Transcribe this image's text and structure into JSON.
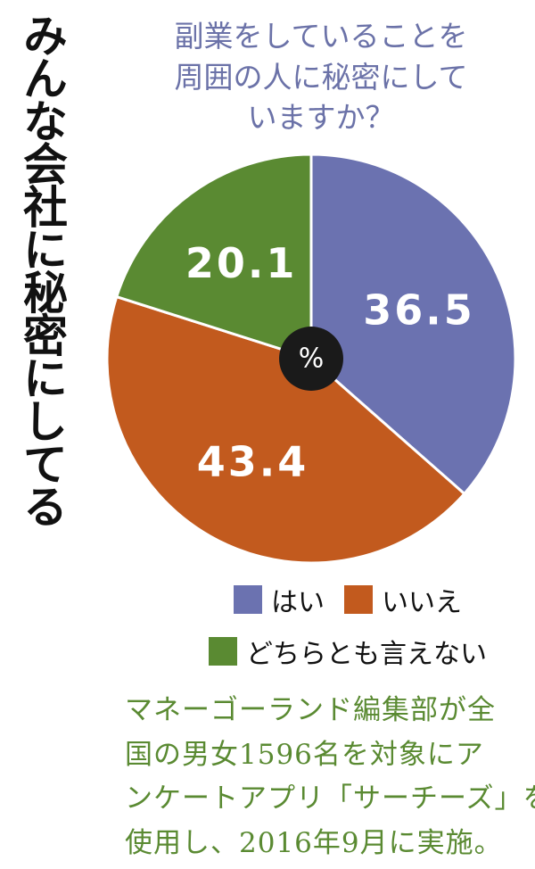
{
  "title": "みんな会社に秘密にしてる",
  "question": [
    "副業をしていることを",
    "周囲の人に秘密にして",
    "いますか？"
  ],
  "chart_data": {
    "type": "pie",
    "unit": "%",
    "slices": [
      {
        "label": "はい",
        "value": 36.5,
        "color": "#6b72b0"
      },
      {
        "label": "いいえ",
        "value": 43.4,
        "color": "#c25a1e"
      },
      {
        "label": "どちらとも言えない",
        "value": 20.1,
        "color": "#5a8a32"
      }
    ]
  },
  "note": [
    "マネーゴーランド編集部が全",
    "国の男女1596名を対象にア",
    "ンケートアプリ「サーチーズ」を",
    "使用し、2016年9月に実施。"
  ]
}
